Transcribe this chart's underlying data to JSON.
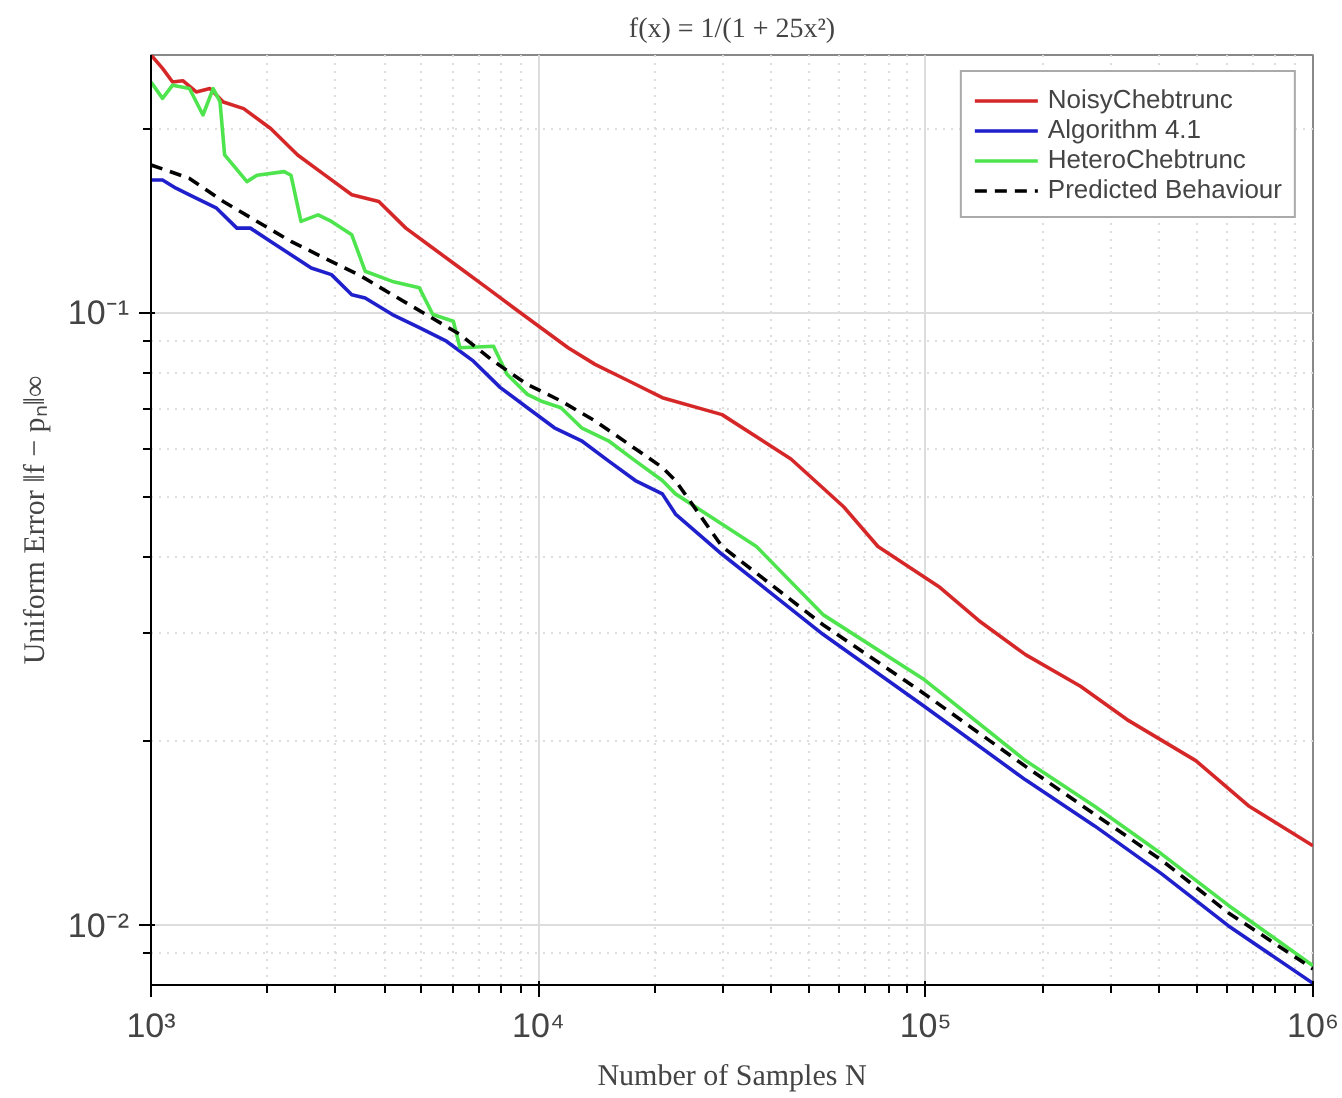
{
  "chart_data": {
    "type": "line",
    "title": "f(x) = 1/(1 + 25x²)",
    "xlabel": "Number of Samples N",
    "ylabel": "Uniform Error ‖f − pₙ‖∞",
    "log": "xy",
    "grid": true,
    "legend": "top right",
    "xlim": [
      1000,
      1000000
    ],
    "ylim": [
      0.008,
      0.264
    ],
    "xticks": [
      {
        "value": 1000,
        "label": "10³"
      },
      {
        "value": 2000,
        "label": null
      },
      {
        "value": 3000,
        "label": null
      },
      {
        "value": 4000,
        "label": null
      },
      {
        "value": 5000,
        "label": null
      },
      {
        "value": 6000,
        "label": null
      },
      {
        "value": 7000,
        "label": null
      },
      {
        "value": 8000,
        "label": null
      },
      {
        "value": 9000,
        "label": null
      },
      {
        "value": 10000,
        "label": "10⁴"
      },
      {
        "value": 20000,
        "label": null
      },
      {
        "value": 30000,
        "label": null
      },
      {
        "value": 40000,
        "label": null
      },
      {
        "value": 50000,
        "label": null
      },
      {
        "value": 60000,
        "label": null
      },
      {
        "value": 70000,
        "label": null
      },
      {
        "value": 80000,
        "label": null
      },
      {
        "value": 90000,
        "label": null
      },
      {
        "value": 100000,
        "label": "10⁵"
      },
      {
        "value": 200000,
        "label": null
      },
      {
        "value": 300000,
        "label": null
      },
      {
        "value": 400000,
        "label": null
      },
      {
        "value": 500000,
        "label": null
      },
      {
        "value": 600000,
        "label": null
      },
      {
        "value": 700000,
        "label": null
      },
      {
        "value": 800000,
        "label": null
      },
      {
        "value": 900000,
        "label": null
      },
      {
        "value": 1000000,
        "label": "10⁶"
      }
    ],
    "yticks": [
      {
        "value": 0.009,
        "label": null
      },
      {
        "value": 0.01,
        "label": "10⁻²"
      },
      {
        "value": 0.02,
        "label": null
      },
      {
        "value": 0.03,
        "label": null
      },
      {
        "value": 0.04,
        "label": null
      },
      {
        "value": 0.05,
        "label": null
      },
      {
        "value": 0.06,
        "label": null
      },
      {
        "value": 0.07,
        "label": null
      },
      {
        "value": 0.08,
        "label": null
      },
      {
        "value": 0.09,
        "label": null
      },
      {
        "value": 0.1,
        "label": "10⁻¹"
      },
      {
        "value": 0.2,
        "label": null
      }
    ],
    "series": [
      {
        "name": "NoisyChebtrunc",
        "color": "#d62728",
        "line_style": "solid",
        "x": [
          1000,
          1071,
          1137,
          1208,
          1309,
          1419,
          1537,
          1735,
          2037,
          2391,
          2808,
          3299,
          3874,
          4549,
          5340,
          6277,
          7370,
          8652,
          10150,
          11935,
          14010,
          17130,
          20900,
          29800,
          44900,
          61400,
          75300,
          108000,
          137000,
          181000,
          251000,
          331000,
          498000,
          681000,
          1000000
        ],
        "values": [
          0.264,
          0.251,
          0.2385,
          0.2397,
          0.2298,
          0.2327,
          0.2212,
          0.2158,
          0.2003,
          0.1813,
          0.1682,
          0.1561,
          0.1522,
          0.1377,
          0.1278,
          0.1185,
          0.11,
          0.102,
          0.0947,
          0.0878,
          0.0825,
          0.0775,
          0.0728,
          0.0683,
          0.0578,
          0.0483,
          0.0416,
          0.0358,
          0.0315,
          0.0277,
          0.0246,
          0.0217,
          0.0186,
          0.0157,
          0.0135
        ]
      },
      {
        "name": "Algorithm 4.1",
        "color": "#1f1fcc",
        "line_style": "solid",
        "x": [
          1000,
          1071,
          1160,
          1257,
          1477,
          1666,
          1805,
          2037,
          2298,
          2593,
          2923,
          3299,
          3572,
          4199,
          4930,
          5790,
          6800,
          7980,
          9370,
          11000,
          12930,
          15170,
          17800,
          20900,
          22600,
          29800,
          54300,
          99300,
          181000,
          273000,
          406000,
          604000,
          1000000
        ],
        "values": [
          0.165,
          0.165,
          0.16,
          0.156,
          0.1484,
          0.1377,
          0.1377,
          0.131,
          0.1246,
          0.1185,
          0.1156,
          0.1072,
          0.1059,
          0.0995,
          0.0947,
          0.09,
          0.0835,
          0.0756,
          0.0701,
          0.065,
          0.0619,
          0.0574,
          0.0533,
          0.0507,
          0.047,
          0.0404,
          0.0299,
          0.0228,
          0.0173,
          0.01455,
          0.01216,
          0.01,
          0.00805
        ]
      },
      {
        "name": "HeteroChebtrunc",
        "color": "#4ee44e",
        "line_style": "solid",
        "x": [
          1000,
          1071,
          1137,
          1257,
          1362,
          1447,
          1507,
          1549,
          1769,
          1879,
          2207,
          2298,
          2439,
          2700,
          2923,
          3299,
          3572,
          4199,
          4930,
          5340,
          6034,
          6277,
          7660,
          8300,
          9370,
          10150,
          11440,
          12930,
          15170,
          17800,
          20900,
          22600,
          36560,
          54300,
          99300,
          181000,
          273000,
          406000,
          604000,
          1000000
        ],
        "values": [
          0.2385,
          0.2243,
          0.2357,
          0.2328,
          0.2107,
          0.2327,
          0.2215,
          0.1813,
          0.164,
          0.168,
          0.1703,
          0.168,
          0.1412,
          0.1447,
          0.1412,
          0.1343,
          0.1171,
          0.1127,
          0.11,
          0.0995,
          0.097,
          0.0878,
          0.0883,
          0.0795,
          0.0737,
          0.0719,
          0.0701,
          0.065,
          0.0619,
          0.0574,
          0.0533,
          0.0507,
          0.0416,
          0.0322,
          0.0252,
          0.0186,
          0.01567,
          0.0131,
          0.0108,
          0.0086
        ]
      },
      {
        "name": "Predicted Behaviour",
        "color": "#000000",
        "line_style": "dashed",
        "x": [
          1000,
          1257,
          1537,
          1879,
          2298,
          2808,
          3434,
          4199,
          5133,
          6277,
          7660,
          9370,
          11440,
          14010,
          17130,
          20900,
          22600,
          29800,
          54300,
          99300,
          181000,
          273000,
          406000,
          604000,
          1000000
        ],
        "values": [
          0.1746,
          0.166,
          0.1522,
          0.1412,
          0.131,
          0.123,
          0.1156,
          0.1072,
          0.0995,
          0.0923,
          0.0835,
          0.0765,
          0.0719,
          0.0667,
          0.0611,
          0.056,
          0.0533,
          0.0416,
          0.031,
          0.0239,
          0.0182,
          0.0152,
          0.0128,
          0.0105,
          0.0085
        ]
      }
    ]
  }
}
